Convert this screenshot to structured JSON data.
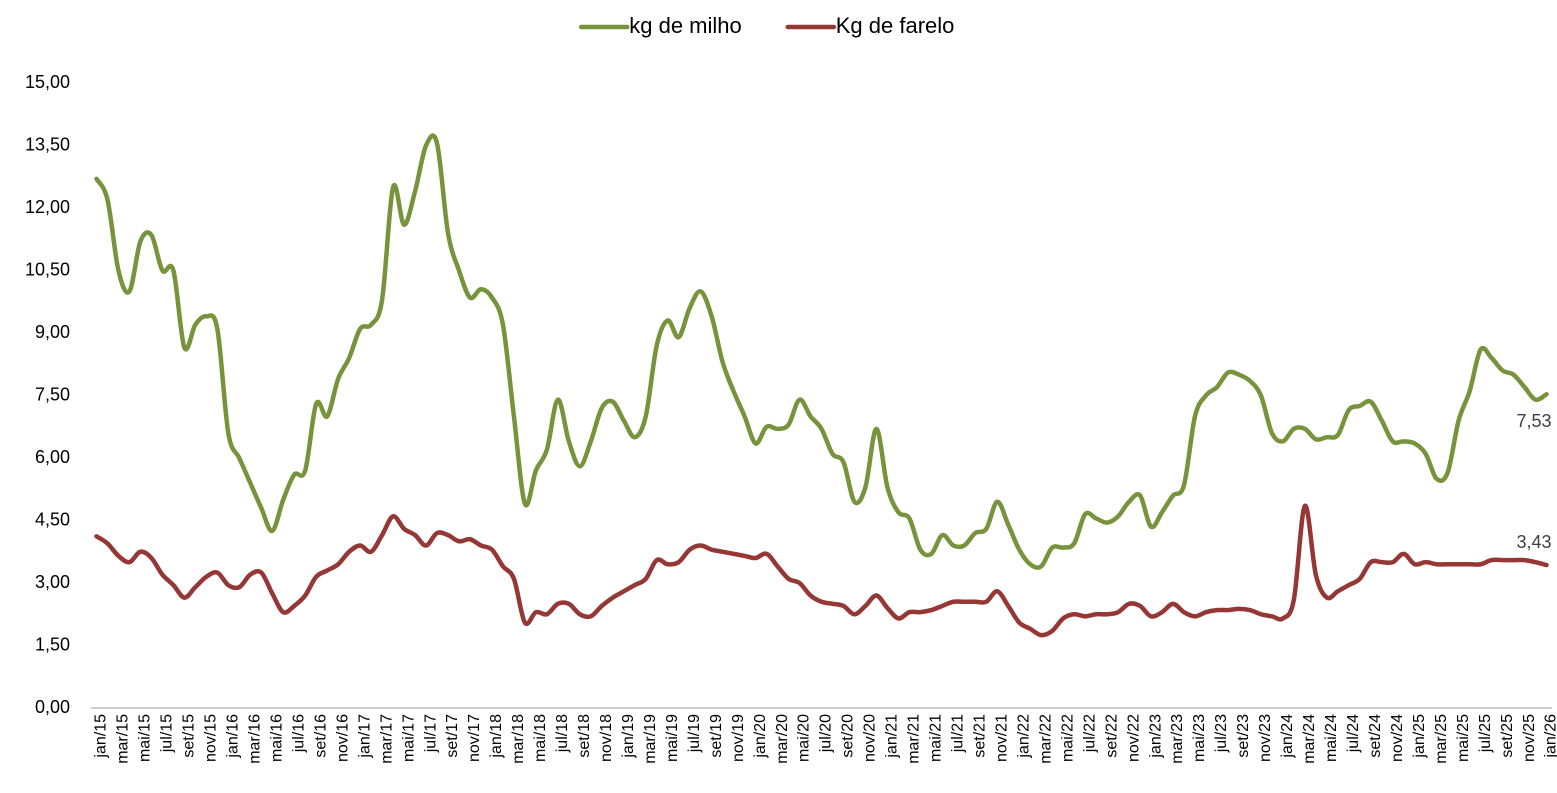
{
  "chart_data": {
    "type": "line",
    "categories": [
      "jan/15",
      null,
      "mar/15",
      null,
      "mai/15",
      null,
      "jul/15",
      null,
      "set/15",
      null,
      "nov/15",
      null,
      "jan/16",
      null,
      "mar/16",
      null,
      "mai/16",
      null,
      "jul/16",
      null,
      "set/16",
      null,
      "nov/16",
      null,
      "jan/17",
      null,
      "mar/17",
      null,
      "mai/17",
      null,
      "jul/17",
      null,
      "set/17",
      null,
      "nov/17",
      null,
      "jan/18",
      null,
      "mar/18",
      null,
      "mai/18",
      null,
      "jul/18",
      null,
      "set/18",
      null,
      "nov/18",
      null,
      "jan/19",
      null,
      "mar/19",
      null,
      "mai/19",
      null,
      "jul/19",
      null,
      "set/19",
      null,
      "nov/19",
      null,
      "jan/20",
      null,
      "mar/20",
      null,
      "mai/20",
      null,
      "jul/20",
      null,
      "set/20",
      null,
      "nov/20",
      null,
      "jan/21",
      null,
      "mar/21",
      null,
      "mai/21",
      null,
      "jul/21",
      null,
      "set/21",
      null,
      "nov/21",
      null,
      "jan/22",
      null,
      "mar/22",
      null,
      "mai/22",
      null,
      "jul/22",
      null,
      "set/22",
      null,
      "nov/22",
      null,
      "jan/23",
      null,
      "mar/23",
      null,
      "mai/23",
      null,
      "jul/23",
      null,
      "set/23",
      null,
      "nov/23",
      null,
      "jan/24",
      null,
      "mar/24",
      null,
      "mai/24",
      null,
      "jul/24",
      null,
      "set/24",
      null,
      "nov/24",
      null,
      "jan/25",
      null,
      "mar/25",
      null,
      "mai/25",
      null,
      "jul/25",
      null,
      "set/25",
      null,
      "nov/25",
      null,
      "jan/26"
    ],
    "series": [
      {
        "name": "kg de milho",
        "color": "#77933c",
        "values": [
          12.7,
          12.2,
          10.5,
          10.0,
          11.2,
          11.35,
          10.5,
          10.5,
          8.65,
          9.2,
          9.4,
          9.1,
          6.6,
          6.0,
          5.4,
          4.8,
          4.25,
          5.0,
          5.6,
          5.7,
          7.3,
          7.0,
          7.9,
          8.4,
          9.1,
          9.2,
          9.8,
          12.5,
          11.6,
          12.4,
          13.5,
          13.55,
          11.4,
          10.5,
          9.85,
          10.05,
          9.85,
          9.2,
          7.0,
          4.9,
          5.7,
          6.2,
          7.4,
          6.4,
          5.8,
          6.4,
          7.2,
          7.35,
          6.9,
          6.5,
          7.0,
          8.7,
          9.3,
          8.9,
          9.6,
          10.0,
          9.4,
          8.3,
          7.6,
          7.0,
          6.35,
          6.75,
          6.7,
          6.8,
          7.4,
          7.0,
          6.7,
          6.1,
          5.9,
          4.95,
          5.3,
          6.7,
          5.3,
          4.7,
          4.55,
          3.8,
          3.7,
          4.15,
          3.9,
          3.9,
          4.2,
          4.3,
          4.95,
          4.4,
          3.8,
          3.45,
          3.4,
          3.85,
          3.85,
          3.95,
          4.65,
          4.55,
          4.45,
          4.6,
          4.95,
          5.1,
          4.35,
          4.7,
          5.1,
          5.35,
          7.0,
          7.5,
          7.7,
          8.05,
          8.0,
          7.85,
          7.5,
          6.6,
          6.4,
          6.7,
          6.7,
          6.45,
          6.5,
          6.55,
          7.15,
          7.25,
          7.35,
          6.9,
          6.4,
          6.4,
          6.35,
          6.1,
          5.5,
          5.65,
          6.9,
          7.6,
          8.6,
          8.4,
          8.1,
          8.0,
          7.7,
          7.4,
          7.53
        ],
        "value_labels": [
          null,
          null,
          null,
          null,
          null,
          null,
          null,
          null,
          null,
          null,
          null,
          null,
          null,
          null,
          null,
          null,
          null,
          null,
          null,
          null,
          null,
          null,
          null,
          null,
          null,
          null,
          null,
          null,
          null,
          null,
          null,
          null,
          null,
          null,
          null,
          null,
          null,
          null,
          null,
          null,
          null,
          null,
          null,
          null,
          null,
          null,
          null,
          null,
          null,
          null,
          null,
          null,
          null,
          null,
          null,
          null,
          null,
          null,
          null,
          null,
          null,
          null,
          null,
          null,
          null,
          null,
          null,
          null,
          null,
          null,
          null,
          null,
          null,
          null,
          null,
          null,
          null,
          null,
          null,
          null,
          null,
          null,
          null,
          null,
          null,
          null,
          null,
          null,
          null,
          null,
          null,
          null,
          null,
          null,
          null,
          null,
          null,
          null,
          null,
          null,
          null,
          null,
          null,
          null,
          null,
          null,
          null,
          null,
          null,
          null,
          null,
          null,
          null,
          null,
          null,
          null,
          null,
          null,
          null,
          null,
          null,
          null,
          null,
          null,
          null,
          null,
          null,
          null,
          null,
          null,
          null,
          null,
          "7,53"
        ]
      },
      {
        "name": "Kg de farelo",
        "color": "#953735",
        "values": [
          4.12,
          3.95,
          3.65,
          3.5,
          3.75,
          3.6,
          3.2,
          2.95,
          2.65,
          2.9,
          3.15,
          3.25,
          2.95,
          2.9,
          3.2,
          3.25,
          2.75,
          2.3,
          2.45,
          2.7,
          3.15,
          3.3,
          3.45,
          3.75,
          3.9,
          3.75,
          4.15,
          4.6,
          4.3,
          4.15,
          3.9,
          4.2,
          4.15,
          4.0,
          4.05,
          3.9,
          3.8,
          3.4,
          3.1,
          2.05,
          2.3,
          2.25,
          2.5,
          2.5,
          2.25,
          2.2,
          2.45,
          2.65,
          2.8,
          2.95,
          3.1,
          3.55,
          3.45,
          3.5,
          3.8,
          3.9,
          3.8,
          3.75,
          3.7,
          3.65,
          3.6,
          3.7,
          3.4,
          3.1,
          3.0,
          2.7,
          2.55,
          2.5,
          2.45,
          2.25,
          2.45,
          2.7,
          2.4,
          2.15,
          2.3,
          2.3,
          2.35,
          2.45,
          2.55,
          2.55,
          2.55,
          2.55,
          2.8,
          2.45,
          2.05,
          1.9,
          1.75,
          1.85,
          2.15,
          2.25,
          2.2,
          2.25,
          2.25,
          2.3,
          2.5,
          2.45,
          2.2,
          2.3,
          2.5,
          2.3,
          2.2,
          2.3,
          2.35,
          2.35,
          2.38,
          2.35,
          2.25,
          2.2,
          2.15,
          2.6,
          4.85,
          3.2,
          2.65,
          2.8,
          2.95,
          3.1,
          3.5,
          3.5,
          3.5,
          3.7,
          3.45,
          3.5,
          3.45,
          3.45,
          3.45,
          3.45,
          3.45,
          3.55,
          3.55,
          3.55,
          3.55,
          3.5,
          3.43
        ],
        "value_labels": [
          null,
          null,
          null,
          null,
          null,
          null,
          null,
          null,
          null,
          null,
          null,
          null,
          null,
          null,
          null,
          null,
          null,
          null,
          null,
          null,
          null,
          null,
          null,
          null,
          null,
          null,
          null,
          null,
          null,
          null,
          null,
          null,
          null,
          null,
          null,
          null,
          null,
          null,
          null,
          null,
          null,
          null,
          null,
          null,
          null,
          null,
          null,
          null,
          null,
          null,
          null,
          null,
          null,
          null,
          null,
          null,
          null,
          null,
          null,
          null,
          null,
          null,
          null,
          null,
          null,
          null,
          null,
          null,
          null,
          null,
          null,
          null,
          null,
          null,
          null,
          null,
          null,
          null,
          null,
          null,
          null,
          null,
          null,
          null,
          null,
          null,
          null,
          null,
          null,
          null,
          null,
          null,
          null,
          null,
          null,
          null,
          null,
          null,
          null,
          null,
          null,
          null,
          null,
          null,
          null,
          null,
          null,
          null,
          null,
          null,
          null,
          null,
          null,
          null,
          null,
          null,
          null,
          null,
          null,
          null,
          null,
          null,
          null,
          null,
          null,
          null,
          null,
          null,
          null,
          null,
          null,
          null,
          "3,43"
        ]
      }
    ],
    "ylim": [
      0,
      15
    ],
    "yticks": [
      {
        "value": 0,
        "label": "0,00"
      },
      {
        "value": 1.5,
        "label": "1,50"
      },
      {
        "value": 3,
        "label": "3,00"
      },
      {
        "value": 4.5,
        "label": "4,50"
      },
      {
        "value": 6,
        "label": "6,00"
      },
      {
        "value": 7.5,
        "label": "7,50"
      },
      {
        "value": 9,
        "label": "9,00"
      },
      {
        "value": 10.5,
        "label": "10,50"
      },
      {
        "value": 12,
        "label": "12,00"
      },
      {
        "value": 13.5,
        "label": "13,50"
      },
      {
        "value": 15,
        "label": "15,00"
      }
    ],
    "grid": false,
    "legend": "top"
  }
}
